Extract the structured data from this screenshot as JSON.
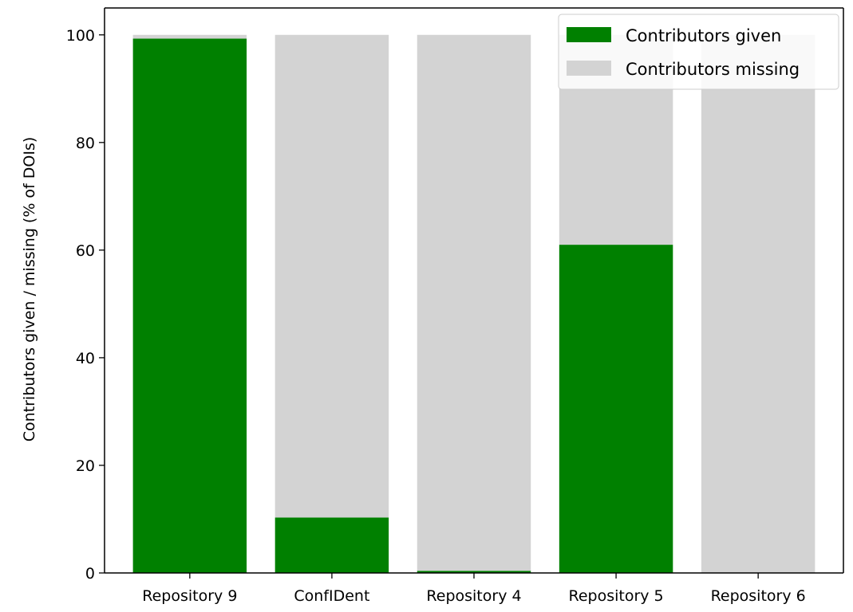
{
  "chart_data": {
    "type": "bar",
    "stacked": true,
    "categories": [
      "Repository 9",
      "ConfIDent",
      "Repository 4",
      "Repository 5",
      "Repository 6"
    ],
    "series": [
      {
        "name": "Contributors given",
        "values": [
          99.3,
          10.3,
          0.4,
          61.0,
          0.0
        ],
        "color": "#008000"
      },
      {
        "name": "Contributors missing",
        "values": [
          0.7,
          89.7,
          99.6,
          39.0,
          100.0
        ],
        "color": "#d3d3d3"
      }
    ],
    "title": "",
    "xlabel": "",
    "ylabel": "Contributors given / missing (% of DOIs)",
    "ylim": [
      0,
      105
    ],
    "yticks": [
      0,
      20,
      40,
      60,
      80,
      100
    ],
    "grid": false,
    "legend": {
      "position": "upper right"
    }
  }
}
